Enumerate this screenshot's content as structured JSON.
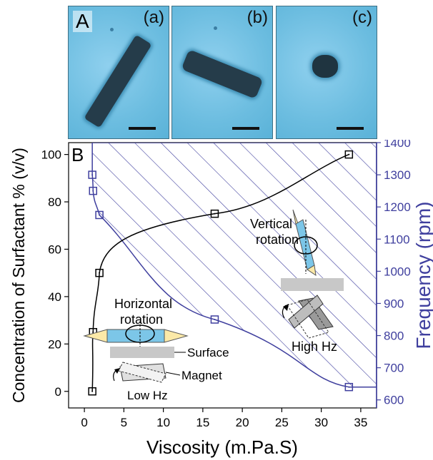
{
  "figure": {
    "panel_a_label": "A",
    "panel_b_label": "B",
    "micrographs": [
      {
        "label": "(a)",
        "subject": "rod-lying-diagonal"
      },
      {
        "label": "(b)",
        "subject": "rod-lying-tilted"
      },
      {
        "label": "(c)",
        "subject": "rod-standing-vertical"
      }
    ]
  },
  "chart_data": {
    "type": "scatter",
    "xlabel": "Viscosity (m.Pa.S)",
    "ylabel": "Concentration of Surfactant % (v/v)",
    "y2label": "Frequency (rpm)",
    "xlim": [
      -2,
      37
    ],
    "ylim": [
      -7,
      105
    ],
    "y2lim": [
      575,
      1400
    ],
    "xticks": [
      "0",
      "5",
      "10",
      "15",
      "20",
      "25",
      "30",
      "35"
    ],
    "yticks": [
      "0",
      "20",
      "40",
      "60",
      "80",
      "100"
    ],
    "y2ticks": [
      "600",
      "700",
      "800",
      "900",
      "1000",
      "1100",
      "1200",
      "1300",
      "1400"
    ],
    "series": [
      {
        "axis": "left",
        "color": "#000000",
        "x": [
          1.0,
          1.1,
          1.9,
          16.5,
          33.5
        ],
        "y": [
          0,
          25,
          50,
          75,
          100
        ]
      },
      {
        "axis": "right",
        "color": "#3f3f9e",
        "x": [
          1.0,
          1.1,
          1.9,
          16.5,
          33.5
        ],
        "y": [
          1300,
          1250,
          1175,
          850,
          640
        ]
      }
    ],
    "annotations": {
      "horizontal_rotation": [
        "Horizontal",
        "rotation"
      ],
      "vertical_rotation": [
        "Vertical",
        "rotation"
      ],
      "surface": "Surface",
      "magnet": "Magnet",
      "low_hz": "Low Hz",
      "high_hz": "High Hz"
    },
    "colors": {
      "axis_left": "#000000",
      "axis_right": "#3f3f9e",
      "hatch": "#3f3f9e"
    }
  }
}
